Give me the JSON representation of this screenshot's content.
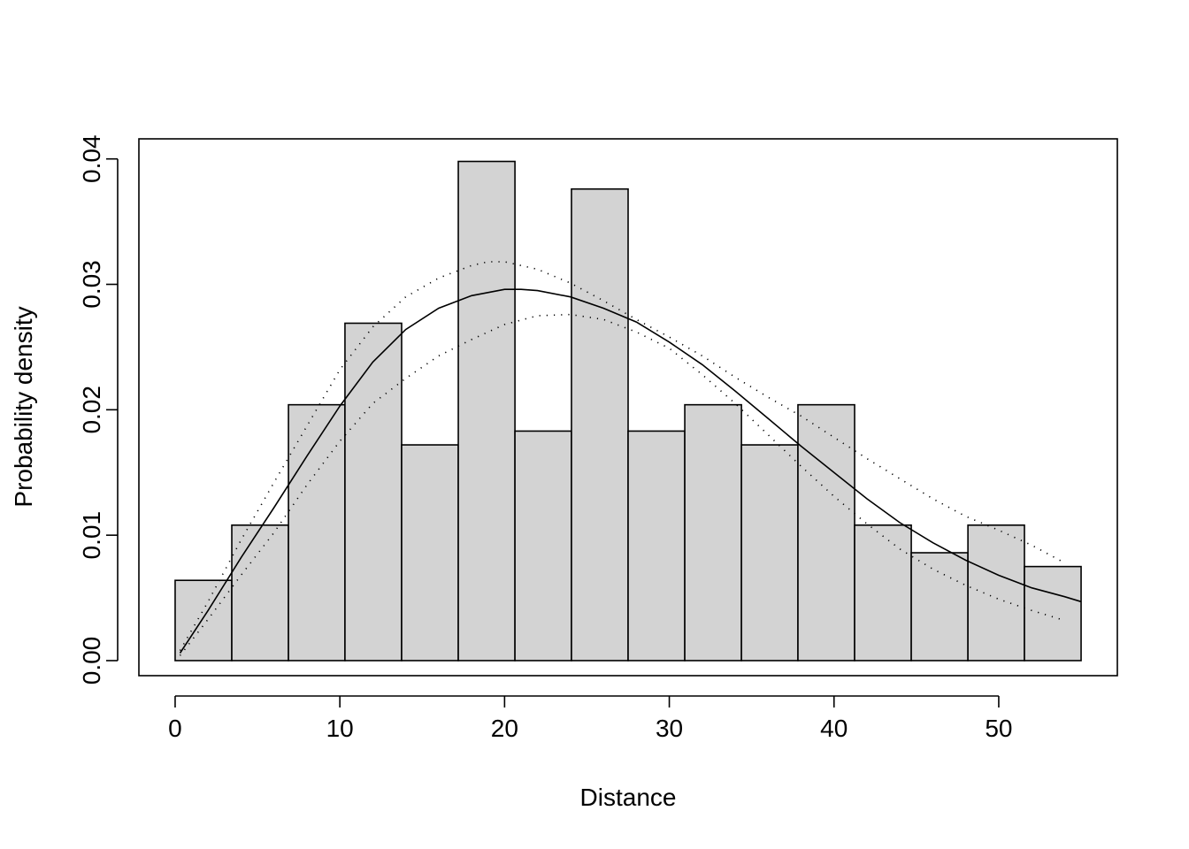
{
  "chart_data": {
    "type": "bar",
    "title": "",
    "xlabel": "Distance",
    "ylabel": "Probability density",
    "xlim": [
      -2.2,
      57.2
    ],
    "ylim": [
      -0.0012,
      0.0416
    ],
    "x_ticks": [
      0,
      10,
      20,
      30,
      40,
      50
    ],
    "x_tick_labels": [
      "0",
      "10",
      "20",
      "30",
      "40",
      "50"
    ],
    "y_ticks": [
      0.0,
      0.01,
      0.02,
      0.03,
      0.04
    ],
    "y_tick_labels": [
      "0.00",
      "0.01",
      "0.02",
      "0.03",
      "0.04"
    ],
    "grid": false,
    "legend": "none",
    "histogram": {
      "bin_edges": [
        0.0,
        3.44,
        6.88,
        10.31,
        13.75,
        17.19,
        20.63,
        24.06,
        27.5,
        30.94,
        34.38,
        37.81,
        41.25,
        44.69,
        48.13,
        51.56,
        55.0
      ],
      "densities": [
        0.0064,
        0.0108,
        0.0204,
        0.0269,
        0.0172,
        0.0398,
        0.0183,
        0.0376,
        0.0183,
        0.0204,
        0.0172,
        0.0204,
        0.0108,
        0.0086,
        0.0108,
        0.0075
      ],
      "fill_color": "#d3d3d3"
    },
    "fitted_curve": {
      "x": [
        0.3,
        2,
        4,
        6,
        8,
        10,
        12,
        14,
        16,
        18,
        20,
        21,
        22,
        24,
        26,
        28,
        30,
        32,
        34,
        36,
        38,
        40,
        42,
        44,
        46,
        48,
        50,
        52,
        54,
        55
      ],
      "y": [
        0.0006,
        0.004,
        0.0082,
        0.0122,
        0.0163,
        0.0203,
        0.0238,
        0.0264,
        0.0281,
        0.0291,
        0.0296,
        0.0296,
        0.0295,
        0.029,
        0.0281,
        0.027,
        0.0254,
        0.0236,
        0.0215,
        0.0193,
        0.0171,
        0.015,
        0.0129,
        0.011,
        0.0094,
        0.008,
        0.0068,
        0.0058,
        0.0051,
        0.0047
      ],
      "color": "#000000"
    },
    "confidence_band_upper": {
      "x": [
        0.3,
        2,
        4,
        6,
        8,
        10,
        12,
        14,
        16,
        18,
        19,
        20,
        22,
        24,
        26,
        28,
        30,
        32,
        34,
        36,
        38,
        40,
        42,
        44,
        46,
        48,
        50,
        52,
        54
      ],
      "y": [
        0.0008,
        0.0047,
        0.0096,
        0.0142,
        0.0187,
        0.0232,
        0.0266,
        0.029,
        0.0305,
        0.0315,
        0.0318,
        0.0318,
        0.0312,
        0.0301,
        0.0287,
        0.0272,
        0.0258,
        0.0243,
        0.0226,
        0.021,
        0.0195,
        0.0178,
        0.0161,
        0.0145,
        0.0129,
        0.0115,
        0.0104,
        0.0092,
        0.0078
      ],
      "style": "dotted"
    },
    "confidence_band_lower": {
      "x": [
        0.3,
        2,
        4,
        6,
        8,
        10,
        12,
        14,
        16,
        18,
        20,
        22,
        24,
        26,
        28,
        30,
        32,
        34,
        36,
        38,
        40,
        42,
        44,
        46,
        48,
        50,
        52,
        54
      ],
      "y": [
        0.0004,
        0.0033,
        0.0068,
        0.0102,
        0.014,
        0.0175,
        0.0205,
        0.0225,
        0.0243,
        0.0256,
        0.0268,
        0.0275,
        0.0276,
        0.0272,
        0.0262,
        0.0249,
        0.0228,
        0.0205,
        0.018,
        0.0155,
        0.0131,
        0.0109,
        0.0089,
        0.0073,
        0.006,
        0.0049,
        0.004,
        0.0032
      ],
      "style": "dotted"
    }
  }
}
